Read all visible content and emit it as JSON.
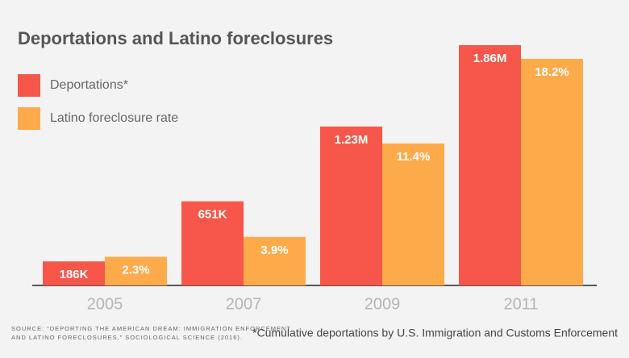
{
  "chart_data": {
    "type": "bar",
    "title": "Deportations and Latino foreclosures",
    "categories": [
      "2005",
      "2007",
      "2009",
      "2011"
    ],
    "series": [
      {
        "name": "Deportations*",
        "color": "#f6574a",
        "values": [
          186000,
          651000,
          1230000,
          1860000
        ],
        "value_labels": [
          "186K",
          "651K",
          "1.23M",
          "1.86M"
        ]
      },
      {
        "name": "Latino foreclosure rate",
        "color": "#fdaa4a",
        "axis": "y2",
        "values": [
          2.3,
          3.9,
          11.4,
          18.2
        ],
        "value_labels": [
          "2.3%",
          "3.9%",
          "11.4%",
          "18.2%"
        ]
      }
    ],
    "ylim": [
      0,
      1860000
    ],
    "y2lim": [
      0,
      19.3
    ],
    "source": [
      "SOURCE: “DEPORTING THE AMERICAN DREAM: IMMIGRATION ENFORCEMENT",
      "AND LATINO FORECLOSURES,” SOCIOLOGICAL SCIENCE (2016)."
    ],
    "footnote": "*Cumulative deportations by U.S. Immigration and Customs Enforcement"
  }
}
